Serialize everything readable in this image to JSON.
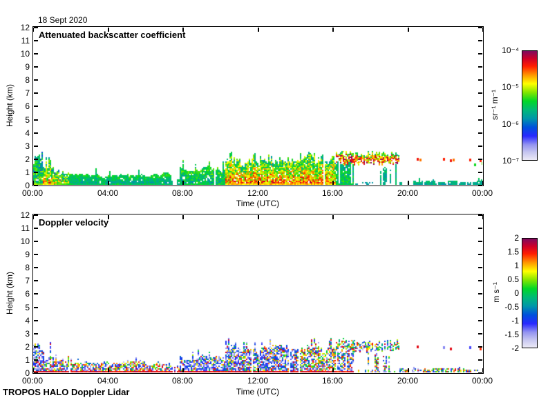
{
  "page": {
    "date_title": "18 Sept 2020",
    "footer": "TROPOS HALO Doppler Lidar",
    "background": "#ffffff",
    "frame_color": "#000000"
  },
  "colormap": [
    [
      0.0,
      [
        236,
        234,
        246
      ]
    ],
    [
      0.07,
      [
        198,
        198,
        240
      ]
    ],
    [
      0.14,
      [
        148,
        148,
        240
      ]
    ],
    [
      0.22,
      [
        40,
        40,
        255
      ]
    ],
    [
      0.3,
      [
        0,
        80,
        220
      ]
    ],
    [
      0.38,
      [
        0,
        150,
        170
      ]
    ],
    [
      0.46,
      [
        0,
        185,
        120
      ]
    ],
    [
      0.54,
      [
        0,
        215,
        40
      ]
    ],
    [
      0.62,
      [
        130,
        230,
        0
      ]
    ],
    [
      0.7,
      [
        255,
        255,
        0
      ]
    ],
    [
      0.78,
      [
        255,
        150,
        0
      ]
    ],
    [
      0.86,
      [
        255,
        30,
        0
      ]
    ],
    [
      0.93,
      [
        205,
        0,
        40
      ]
    ],
    [
      1.0,
      [
        125,
        10,
        95
      ]
    ]
  ],
  "chart_data": [
    {
      "type": "heatmap",
      "title": "Attenuated backscatter coefficient",
      "xlabel": "Time (UTC)",
      "ylabel": "Height (km)",
      "x_ticks": [
        "00:00",
        "04:00",
        "08:00",
        "12:00",
        "16:00",
        "20:00",
        "00:00"
      ],
      "x_range_hours": [
        0,
        24
      ],
      "ylim": [
        0,
        12
      ],
      "y_ticks": [
        "0",
        "1",
        "2",
        "3",
        "4",
        "5",
        "6",
        "7",
        "8",
        "9",
        "10",
        "11",
        "12"
      ],
      "colorbar": {
        "ticks": [
          "10⁻⁴",
          "10⁻⁵",
          "10⁻⁶",
          "10⁻⁷"
        ],
        "unit": "sr⁻¹ m⁻¹",
        "scale": "log",
        "range_low": "1e-7",
        "range_high": "1e-4"
      },
      "render": {
        "mode": "intensity",
        "seed": 7,
        "holeP": 0.07,
        "segments": [
          {
            "t0": 0.0,
            "t1": 0.5,
            "top": 1.9,
            "spikeP": 0.35,
            "spike": 0.7,
            "presence": 1.0,
            "core": 0.55,
            "edge": 0.42,
            "noise": 0.3,
            "floor": 0.62,
            "cap": 2.6
          },
          {
            "t0": 0.5,
            "t1": 1.1,
            "top": 1.3,
            "spikeP": 0.3,
            "spike": 1.1,
            "presence": 1.0,
            "core": 0.8,
            "edge": 0.45,
            "noise": 0.35,
            "floor": 0.72,
            "cap": 2.6
          },
          {
            "t0": 1.1,
            "t1": 1.9,
            "top": 0.9,
            "spikeP": 0.2,
            "spike": 0.7,
            "presence": 1.0,
            "core": 0.72,
            "edge": 0.45,
            "noise": 0.35,
            "floor": 0.6,
            "cap": 2.2
          },
          {
            "t0": 1.9,
            "t1": 7.35,
            "top": 0.8,
            "spikeP": 0.07,
            "spike": 0.55,
            "presence": 0.99,
            "core": 0.4,
            "edge": 0.54,
            "noise": 0.14,
            "floor": 0.5,
            "cap": 1.8
          },
          {
            "t0": 7.35,
            "t1": 7.8,
            "top": 0.45,
            "spikeP": 0.05,
            "spike": 0.4,
            "presence": 0.5,
            "core": 0.4,
            "edge": 0.5,
            "noise": 0.12,
            "floor": 0.45,
            "cap": 1.2
          },
          {
            "t0": 7.8,
            "t1": 10.3,
            "top": 1.25,
            "spikeP": 0.15,
            "spike": 0.8,
            "presence": 0.96,
            "core": 0.44,
            "edge": 0.55,
            "noise": 0.22,
            "floor": 0.52,
            "cap": 2.3
          },
          {
            "t0": 10.3,
            "t1": 16.2,
            "top": 1.9,
            "spikeP": 0.3,
            "spike": 0.7,
            "presence": 0.98,
            "core": 0.82,
            "edge": 0.52,
            "noise": 0.34,
            "floor": 0.74,
            "cap": 2.7
          },
          {
            "t0": 16.2,
            "t1": 17.1,
            "top": 1.6,
            "spikeP": 0.05,
            "spike": 0.3,
            "presence": 0.8,
            "core": 0.5,
            "edge": 0.45,
            "noise": 0.2,
            "floor": 0.5,
            "cap": 1.8,
            "band": [
              1.7,
              2.4
            ],
            "bandP": 0.97,
            "bandLo": 0.6,
            "bandHi": 1.0
          },
          {
            "t0": 17.1,
            "t1": 18.25,
            "top": 1.4,
            "spikeP": 0.03,
            "spike": 0.3,
            "presence": 0.15,
            "core": 0.42,
            "edge": 0.42,
            "noise": 0.12,
            "cap": 1.7,
            "band": [
              1.7,
              2.4
            ],
            "bandP": 0.95,
            "bandLo": 0.6,
            "bandHi": 1.0,
            "surfP": 0.4,
            "surfTop": 0.22,
            "surfI": 0.4
          },
          {
            "t0": 18.25,
            "t1": 19.55,
            "top": 1.2,
            "spikeP": 0.05,
            "spike": 0.4,
            "presence": 0.35,
            "core": 0.44,
            "edge": 0.46,
            "noise": 0.15,
            "cap": 1.6,
            "band": [
              1.75,
              2.35
            ],
            "bandP": 0.9,
            "bandLo": 0.6,
            "bandHi": 1.0,
            "surfP": 0.35,
            "surfTop": 0.2,
            "surfI": 0.4
          },
          {
            "t0": 19.55,
            "t1": 20.3,
            "top": 0.25,
            "spikeP": 0,
            "spike": 0,
            "presence": 0.4,
            "core": 0.4,
            "edge": 0.46,
            "noise": 0.1,
            "floor": 0.42,
            "cap": 0.6
          },
          {
            "t0": 20.3,
            "t1": 24.01,
            "top": 0.32,
            "spikeP": 0.04,
            "spike": 0.25,
            "presence": 0.85,
            "core": 0.4,
            "edge": 0.47,
            "noise": 0.12,
            "floor": 0.42,
            "cap": 0.8
          }
        ],
        "specks": [
          {
            "t": 20.5,
            "z": 2.05,
            "i": 0.88
          },
          {
            "t": 20.65,
            "z": 2.0,
            "i": 0.8
          },
          {
            "t": 21.9,
            "z": 2.05,
            "i": 0.86
          },
          {
            "t": 22.25,
            "z": 1.95,
            "i": 0.88
          },
          {
            "t": 22.4,
            "z": 2.0,
            "i": 0.8
          },
          {
            "t": 23.3,
            "z": 2.0,
            "i": 0.86
          },
          {
            "t": 23.55,
            "z": 1.6,
            "i": 0.55
          },
          {
            "t": 23.85,
            "z": 1.95,
            "i": 0.86
          },
          {
            "t": 23.95,
            "z": 1.75,
            "i": 0.6
          }
        ]
      }
    },
    {
      "type": "heatmap",
      "title": "Doppler velocity",
      "xlabel": "Time (UTC)",
      "ylabel": "Height (km)",
      "x_ticks": [
        "00:00",
        "04:00",
        "08:00",
        "12:00",
        "16:00",
        "20:00",
        "00:00"
      ],
      "x_range_hours": [
        0,
        24
      ],
      "ylim": [
        0,
        12
      ],
      "y_ticks": [
        "0",
        "1",
        "2",
        "3",
        "4",
        "5",
        "6",
        "7",
        "8",
        "9",
        "10",
        "11",
        "12"
      ],
      "colorbar": {
        "ticks": [
          "2",
          "1.5",
          "1",
          "0.5",
          "0",
          "-0.5",
          "-1",
          "-1.5",
          "-2"
        ],
        "unit": "m s⁻¹",
        "scale": "linear",
        "range_low": "-2",
        "range_high": "2"
      },
      "render": {
        "mode": "speckle",
        "seed": 13,
        "holeP": 0.3,
        "segments": [
          {
            "t0": 0.0,
            "t1": 0.5,
            "top": 1.9,
            "spikeP": 0.35,
            "spike": 0.7,
            "presence": 1.0,
            "negP": 0.75,
            "floor": 0.9,
            "cap": 2.6
          },
          {
            "t0": 0.5,
            "t1": 1.1,
            "top": 1.3,
            "spikeP": 0.3,
            "spike": 1.1,
            "presence": 1.0,
            "negP": 0.6,
            "floor": 0.9,
            "cap": 2.6
          },
          {
            "t0": 1.1,
            "t1": 1.9,
            "top": 0.9,
            "spikeP": 0.2,
            "spike": 0.7,
            "presence": 1.0,
            "negP": 0.5,
            "floor": 0.9,
            "cap": 2.2
          },
          {
            "t0": 1.9,
            "t1": 7.35,
            "top": 0.8,
            "spikeP": 0.07,
            "spike": 0.55,
            "presence": 0.99,
            "negP": 0.42,
            "floor": 0.9,
            "cap": 1.8
          },
          {
            "t0": 7.35,
            "t1": 7.8,
            "top": 0.45,
            "spikeP": 0.05,
            "spike": 0.4,
            "presence": 0.5,
            "negP": 0.5,
            "floor": 0.9,
            "cap": 1.2
          },
          {
            "t0": 7.8,
            "t1": 10.3,
            "top": 1.25,
            "spikeP": 0.15,
            "spike": 0.8,
            "presence": 0.96,
            "negP": 0.72,
            "floor": 0.9,
            "cap": 2.3
          },
          {
            "t0": 10.3,
            "t1": 14.2,
            "top": 1.9,
            "spikeP": 0.3,
            "spike": 0.7,
            "presence": 0.98,
            "negP": 0.68,
            "floor": 0.9,
            "cap": 2.7
          },
          {
            "t0": 14.2,
            "t1": 16.2,
            "top": 1.9,
            "spikeP": 0.3,
            "spike": 0.7,
            "presence": 0.98,
            "negP": 0.42,
            "floor": 0.9,
            "cap": 2.7
          },
          {
            "t0": 16.2,
            "t1": 17.1,
            "top": 1.6,
            "spikeP": 0.05,
            "spike": 0.3,
            "presence": 0.8,
            "negP": 0.55,
            "floor": 0.88,
            "cap": 1.8,
            "band": [
              1.7,
              2.4
            ],
            "bandP": 0.97
          },
          {
            "t0": 17.1,
            "t1": 18.25,
            "top": 1.4,
            "spikeP": 0.03,
            "spike": 0.3,
            "presence": 0.15,
            "negP": 0.55,
            "cap": 1.7,
            "band": [
              1.7,
              2.4
            ],
            "bandP": 0.95,
            "surfP": 0.4,
            "surfTop": 0.22
          },
          {
            "t0": 18.25,
            "t1": 19.55,
            "top": 1.2,
            "spikeP": 0.05,
            "spike": 0.4,
            "presence": 0.35,
            "negP": 0.5,
            "cap": 1.6,
            "band": [
              1.75,
              2.35
            ],
            "bandP": 0.9,
            "surfP": 0.35,
            "surfTop": 0.2
          },
          {
            "t0": 19.55,
            "t1": 20.3,
            "top": 0.25,
            "spikeP": 0,
            "spike": 0,
            "presence": 0.4,
            "negP": 0.5,
            "cap": 0.6
          },
          {
            "t0": 20.3,
            "t1": 24.01,
            "top": 0.32,
            "spikeP": 0.04,
            "spike": 0.25,
            "presence": 0.85,
            "negP": 0.45,
            "cap": 0.8
          }
        ],
        "specks": [
          {
            "t": 20.5,
            "z": 2.05,
            "i": 0.9
          },
          {
            "t": 21.9,
            "z": 2.0,
            "i": 0.15
          },
          {
            "t": 22.25,
            "z": 1.9,
            "i": 0.9
          },
          {
            "t": 23.3,
            "z": 2.0,
            "i": 0.2
          },
          {
            "t": 23.85,
            "z": 1.9,
            "i": 0.85
          }
        ]
      }
    }
  ]
}
